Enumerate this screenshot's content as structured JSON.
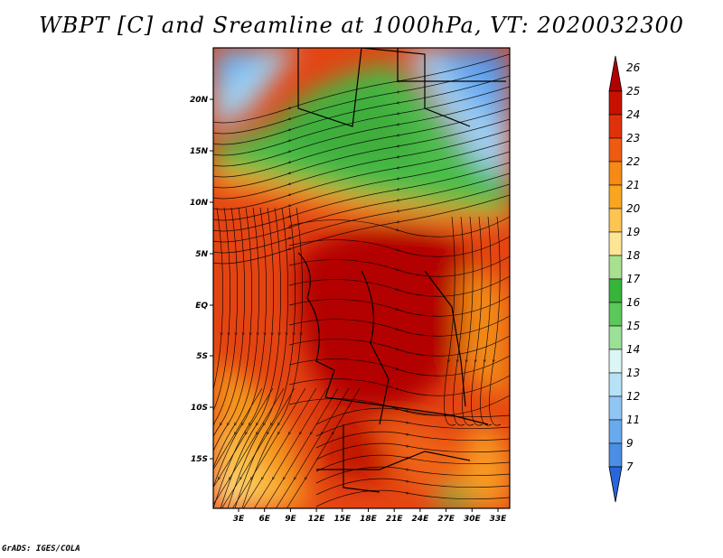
{
  "title": "WBPT [C] and Sreamline at 1000hPa, VT: 2020032300",
  "lat_labels": [
    "20N",
    "15N",
    "10N",
    "5N",
    "EQ",
    "5S",
    "10S",
    "15S"
  ],
  "lon_labels": [
    "3E",
    "6E",
    "9E",
    "12E",
    "15E",
    "18E",
    "21E",
    "24E",
    "27E",
    "30E",
    "33E"
  ],
  "colorbar": {
    "labels": [
      "26",
      "25",
      "24",
      "23",
      "22",
      "21",
      "20",
      "19",
      "18",
      "17",
      "16",
      "15",
      "14",
      "13",
      "12",
      "11",
      "9",
      "7"
    ],
    "colors": [
      "#b30000",
      "#c91000",
      "#e0320a",
      "#ef5a12",
      "#f78a14",
      "#faa51f",
      "#fcc450",
      "#fde594",
      "#a7e08e",
      "#37b43a",
      "#5bc85a",
      "#9ae096",
      "#dcf5f5",
      "#b6e2f7",
      "#8fc6f3",
      "#68aaee",
      "#4b8ee6",
      "#2a66db"
    ]
  },
  "credit": "GrADS: IGES/COLA"
}
